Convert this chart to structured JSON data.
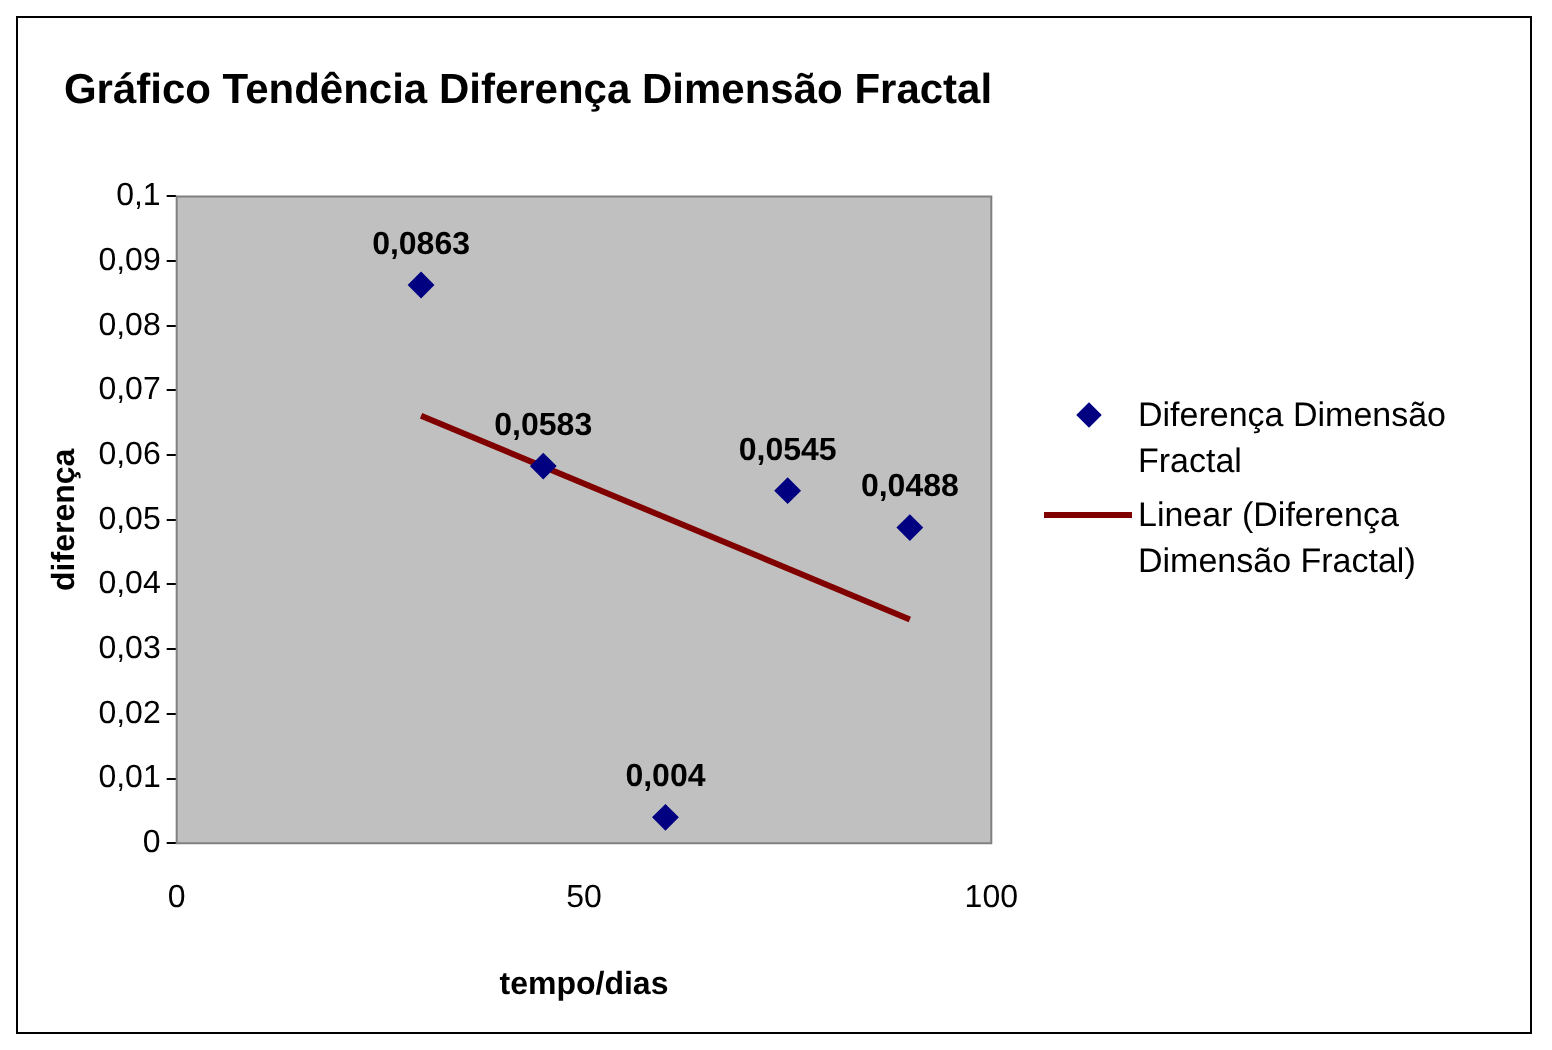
{
  "chart_data": {
    "type": "scatter",
    "title": "Gráfico Tendência Diferença Dimensão Fractal",
    "xlabel": "tempo/dias",
    "ylabel": "diferença",
    "xlim": [
      0,
      100
    ],
    "xticks": [
      0,
      50,
      100
    ],
    "ylim": [
      0,
      0.1
    ],
    "yticks": [
      {
        "value": 0,
        "label": "0"
      },
      {
        "value": 0.01,
        "label": "0,01"
      },
      {
        "value": 0.02,
        "label": "0,02"
      },
      {
        "value": 0.03,
        "label": "0,03"
      },
      {
        "value": 0.04,
        "label": "0,04"
      },
      {
        "value": 0.05,
        "label": "0,05"
      },
      {
        "value": 0.06,
        "label": "0,06"
      },
      {
        "value": 0.07,
        "label": "0,07"
      },
      {
        "value": 0.08,
        "label": "0,08"
      },
      {
        "value": 0.09,
        "label": "0,09"
      },
      {
        "value": 0.1,
        "label": "0,1"
      }
    ],
    "legend": "right",
    "series": [
      {
        "name": "Diferença Dimensão Fractal",
        "type": "scatter",
        "marker": "diamond",
        "color": "#000080",
        "x": [
          30,
          45,
          60,
          75,
          90
        ],
        "values": [
          0.0863,
          0.0583,
          0.004,
          0.0545,
          0.0488
        ],
        "value_labels": [
          "0,0863",
          "0,0583",
          "0,004",
          "0,0545",
          "0,0488"
        ]
      },
      {
        "name": "Linear (Diferença Dimensão Fractal)",
        "type": "line",
        "marker": "none",
        "color": "#800000",
        "x": [
          30,
          90
        ],
        "values": [
          0.0661,
          0.0346
        ]
      }
    ]
  }
}
